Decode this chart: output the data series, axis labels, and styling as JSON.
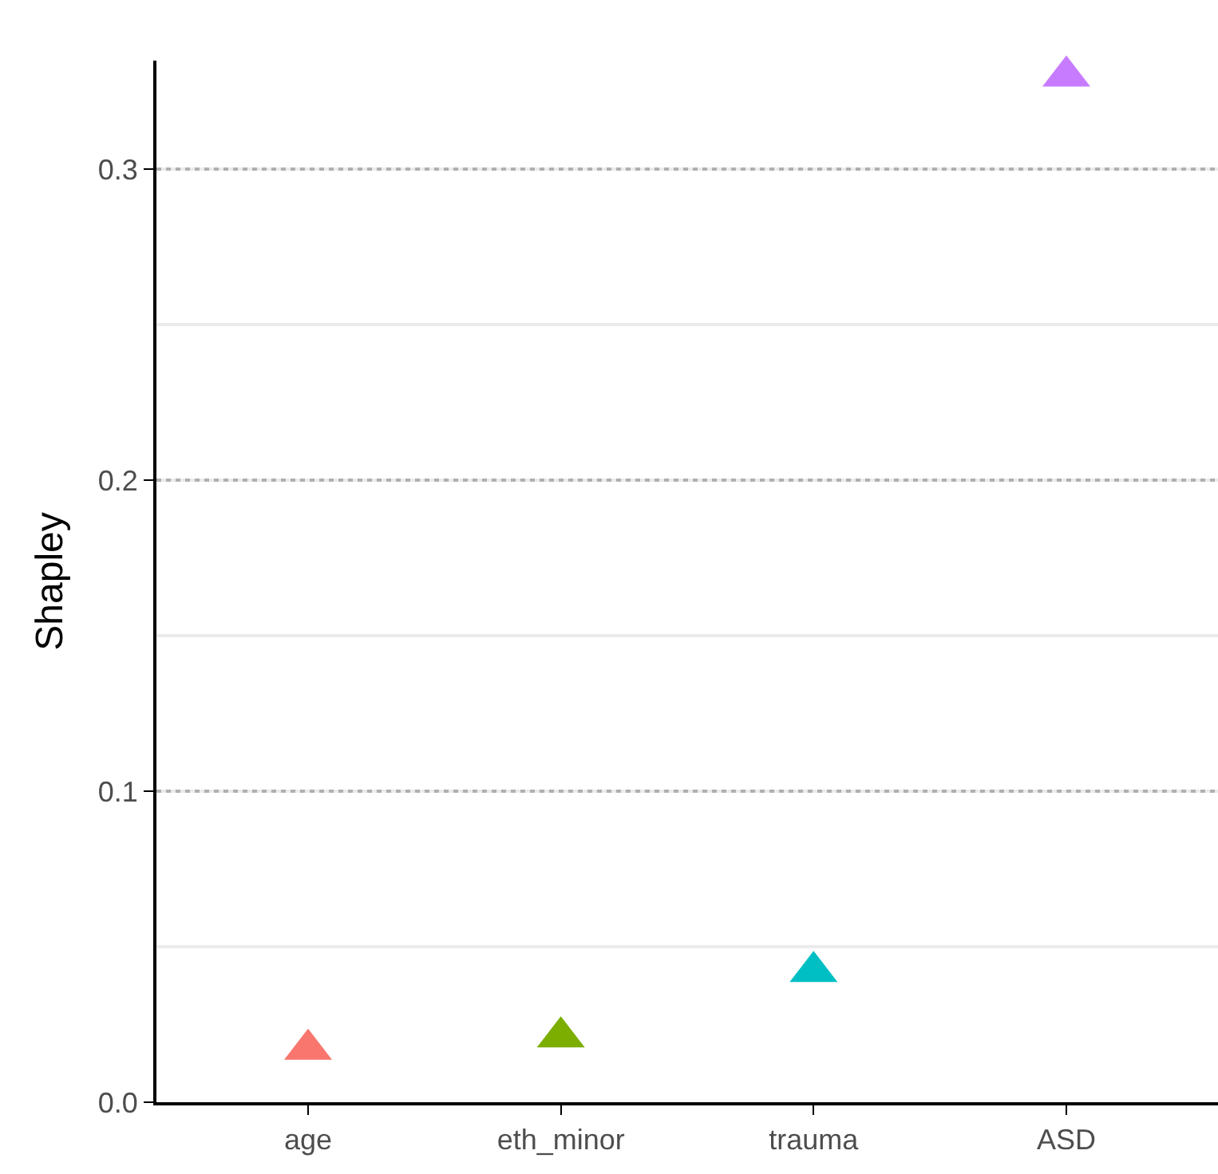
{
  "chart_data": {
    "type": "scatter",
    "ylabel": "Shapley",
    "categories": [
      "age",
      "eth_minor",
      "trauma",
      "ASD"
    ],
    "values": [
      0.017,
      0.021,
      0.042,
      0.33
    ],
    "colors": [
      "#f8766d",
      "#7cae00",
      "#00bfc4",
      "#c77cff"
    ],
    "ylim": [
      0,
      0.335
    ],
    "yticks": [
      {
        "value": 0,
        "label": "0.0"
      },
      0.1,
      0.2,
      0.3
    ],
    "grid": "y",
    "marker": "triangle"
  }
}
